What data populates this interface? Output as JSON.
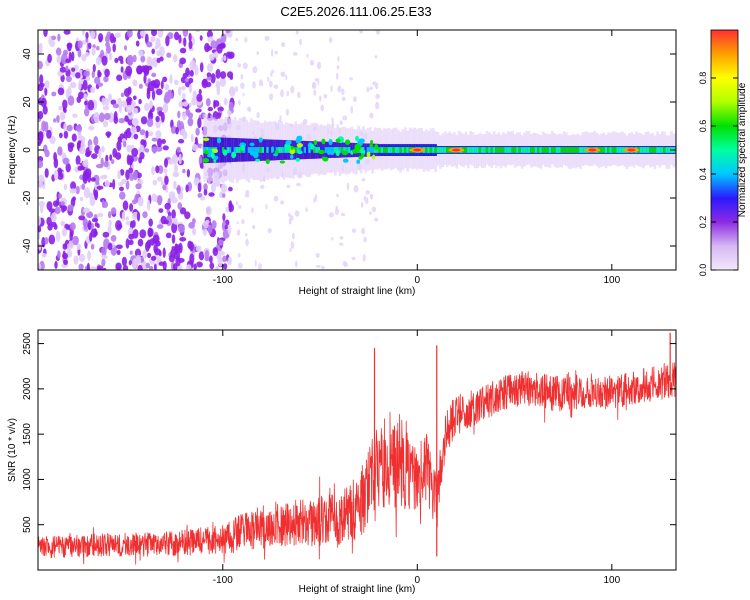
{
  "chart_data": [
    {
      "type": "heatmap",
      "title": "C2E5.2026.111.06.25.E33",
      "xlabel": "Height of straight line (km)",
      "ylabel": "Frequency (Hz)",
      "xlim": [
        -195,
        133
      ],
      "ylim": [
        -50,
        50
      ],
      "x_ticks": [
        -100,
        0,
        100
      ],
      "x_tick_labels": [
        "-100",
        "0",
        "100"
      ],
      "y_ticks": [
        -40,
        -20,
        0,
        20,
        40
      ],
      "y_tick_labels": [
        "-40",
        "-20",
        "0",
        "20",
        "40"
      ],
      "colorbar": {
        "label": "Normalized spectral amplitude",
        "range": [
          0,
          1
        ],
        "ticks": [
          0,
          0.2,
          0.4,
          0.6,
          0.8
        ],
        "tick_labels": [
          "0.0",
          "0.2",
          "0.4",
          "0.6",
          "0.8"
        ],
        "colors": [
          "#f2e8fb",
          "#d7b8f4",
          "#8b2be2",
          "#2b1aff",
          "#00c8ff",
          "#00ffa0",
          "#00e000",
          "#b0ff00",
          "#ffff00",
          "#ffa000",
          "#ff3030"
        ]
      },
      "regions": [
        {
          "description": "broadband noise",
          "x": [
            -195,
            -95
          ],
          "freq": [
            -50,
            50
          ],
          "amplitude": 0.2
        },
        {
          "description": "sparse noise",
          "x": [
            -95,
            -20
          ],
          "freq": [
            -50,
            50
          ],
          "amplitude": 0.05
        },
        {
          "description": "signal band",
          "x": [
            -110,
            133
          ],
          "center_freq": 0,
          "amplitude": 0.5
        },
        {
          "description": "strong peaks",
          "x": [
            0,
            20,
            90,
            110
          ],
          "center_freq": 0,
          "amplitude": 0.9
        }
      ]
    },
    {
      "type": "line",
      "xlabel": "Height of straight line (km)",
      "ylabel": "SNR (10 * v/v)",
      "xlim": [
        -195,
        133
      ],
      "ylim": [
        0,
        2650
      ],
      "x_ticks": [
        -100,
        0,
        100
      ],
      "x_tick_labels": [
        "-100",
        "0",
        "100"
      ],
      "y_ticks": [
        500,
        1000,
        1500,
        2000,
        2500
      ],
      "y_tick_labels": [
        "500",
        "1000",
        "1500",
        "2000",
        "2500"
      ],
      "series": [
        {
          "name": "SNR",
          "color": "#f03030",
          "x": [
            -195,
            -180,
            -160,
            -140,
            -120,
            -100,
            -90,
            -80,
            -70,
            -60,
            -50,
            -40,
            -30,
            -25,
            -20,
            -15,
            -10,
            -5,
            0,
            5,
            10,
            15,
            20,
            30,
            40,
            50,
            60,
            70,
            80,
            90,
            100,
            110,
            120,
            133
          ],
          "values": [
            250,
            260,
            280,
            280,
            300,
            330,
            420,
            470,
            520,
            520,
            540,
            560,
            700,
            900,
            1100,
            1200,
            1100,
            1100,
            1000,
            1150,
            700,
            1550,
            1700,
            1800,
            1900,
            2000,
            2000,
            1950,
            1950,
            2000,
            1950,
            2000,
            2050,
            2100
          ],
          "band": [
            180,
            190,
            200,
            200,
            220,
            260,
            320,
            360,
            400,
            400,
            420,
            450,
            550,
            700,
            800,
            800,
            700,
            650,
            600,
            600,
            500,
            400,
            350,
            300,
            300,
            300,
            300,
            300,
            300,
            300,
            300,
            300,
            300,
            300
          ],
          "spikes": [
            {
              "x": -22,
              "value": 2450
            },
            {
              "x": 10,
              "value": 2480
            },
            {
              "x": 10,
              "value": 150
            },
            {
              "x": 130,
              "value": 2620
            }
          ]
        }
      ]
    }
  ]
}
